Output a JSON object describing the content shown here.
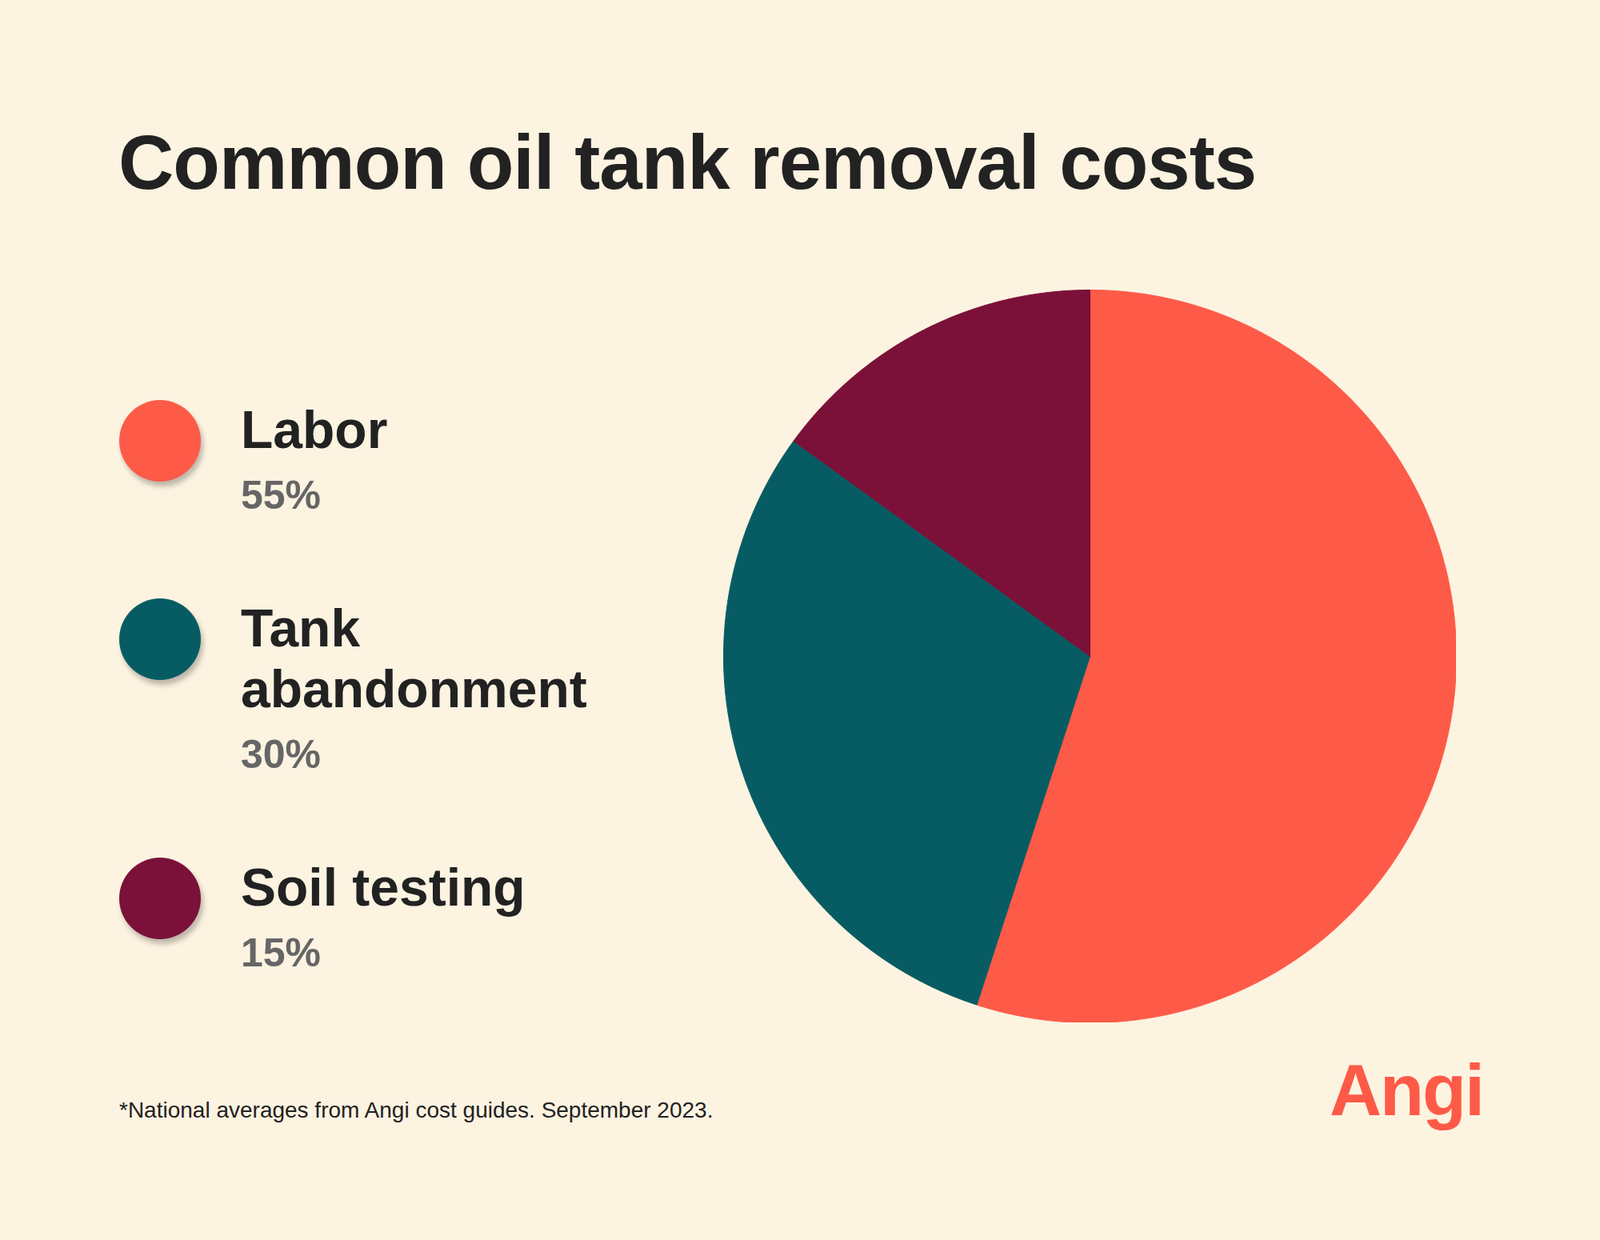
{
  "chart_data": {
    "type": "pie",
    "title": "Common oil tank removal costs",
    "categories": [
      "Labor",
      "Tank abandonment",
      "Soil testing"
    ],
    "values": [
      55,
      30,
      15
    ],
    "value_labels": [
      "55%",
      "30%",
      "15%"
    ],
    "colors": [
      "#fe5a48",
      "#075c63",
      "#7b1138"
    ],
    "legend": "left",
    "caption": "*National averages from Angi cost guides. September 2023.",
    "logo": "Angi"
  }
}
